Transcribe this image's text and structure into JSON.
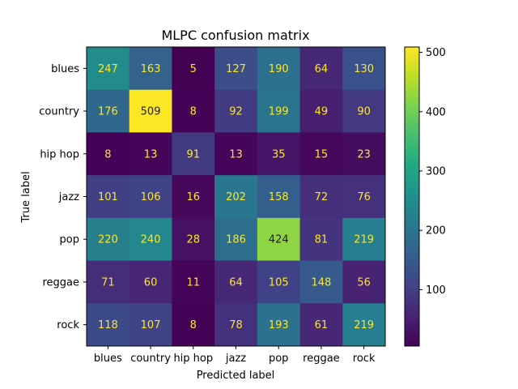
{
  "chart_data": {
    "type": "heatmap",
    "title": "MLPC confusion matrix",
    "xlabel": "Predicted label",
    "ylabel": "True label",
    "x_categories": [
      "blues",
      "country",
      "hip hop",
      "jazz",
      "pop",
      "reggae",
      "rock"
    ],
    "y_categories": [
      "blues",
      "country",
      "hip hop",
      "jazz",
      "pop",
      "reggae",
      "rock"
    ],
    "values": [
      [
        247,
        163,
        5,
        127,
        190,
        64,
        130
      ],
      [
        176,
        509,
        8,
        92,
        199,
        49,
        90
      ],
      [
        8,
        13,
        91,
        13,
        35,
        15,
        23
      ],
      [
        101,
        106,
        16,
        202,
        158,
        72,
        76
      ],
      [
        220,
        240,
        28,
        186,
        424,
        81,
        219
      ],
      [
        71,
        60,
        11,
        64,
        105,
        148,
        56
      ],
      [
        118,
        107,
        8,
        78,
        193,
        61,
        219
      ]
    ],
    "colormap": "viridis",
    "color_range": [
      5,
      509
    ],
    "colorbar_ticks": [
      100,
      200,
      300,
      400,
      500
    ],
    "text_color_light": "#fde725",
    "text_color_dark": "#1f1f1f",
    "grid": false
  }
}
